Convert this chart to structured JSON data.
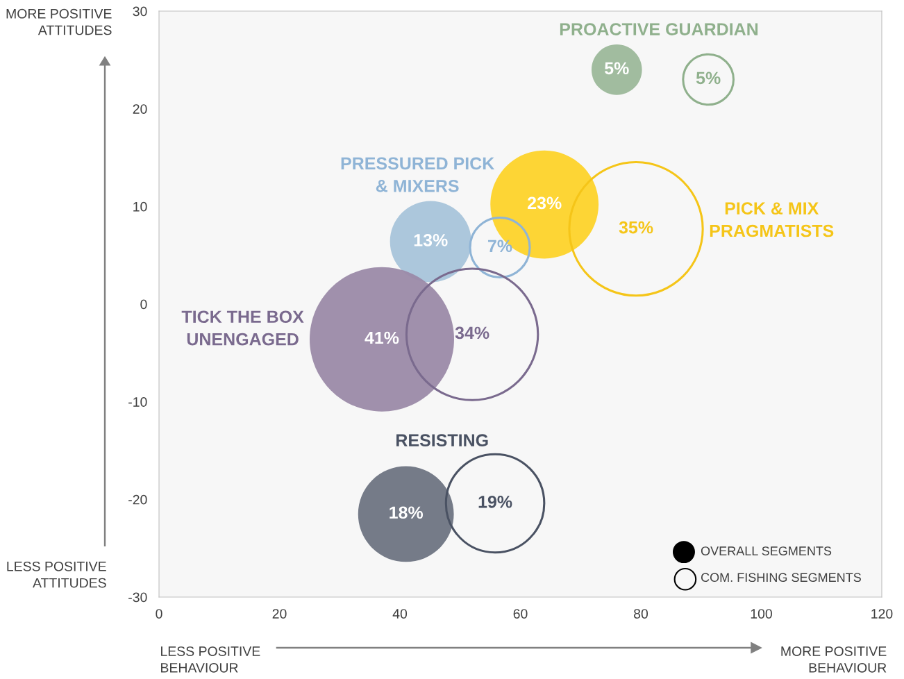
{
  "chart_data": {
    "type": "bubble",
    "xlim": [
      0,
      120
    ],
    "xticks": [
      0,
      20,
      40,
      60,
      80,
      100,
      120
    ],
    "ylim": [
      -30,
      30
    ],
    "yticks": [
      -30,
      -20,
      -10,
      0,
      10,
      20,
      30
    ],
    "grid": false,
    "series": [
      {
        "x": [
          76,
          45.1,
          64.0,
          37.0,
          41.0
        ],
        "values": [
          24.0,
          6.4,
          10.2,
          -3.6,
          -21.5
        ],
        "sizes": [
          0.122,
          0.317,
          0.561,
          1,
          0.439
        ],
        "colors": [
          "#9cb89a",
          "#a8c4da",
          "#fdd32a",
          "#9b8aa8",
          "#6e7482"
        ]
      },
      {
        "line_style": "solid",
        "x": [
          91.2,
          56.6,
          79.2,
          52.0,
          55.8
        ],
        "values": [
          23.0,
          5.8,
          7.7,
          -3.1,
          -20.4
        ],
        "sizes": [
          0.122,
          0.171,
          0.854,
          0.829,
          0.463
        ],
        "colors": [
          "#8fb08c",
          "#8fb4d6",
          "#f5c518",
          "#7a6a8e",
          "#4a5263"
        ]
      }
    ],
    "annotations": [
      "PROACTIVE GUARDIAN",
      "PRESSURED PICK\n& MIXERS",
      "PICK & MIX\nPRAGMATISTS",
      "TICK THE BOX\nUNENGAGED",
      "RESISTING",
      "MORE POSITIVE\nATTITUDES",
      "LESS POSITIVE\nATTITUDES",
      "LESS POSITIVE\nBEHAVIOUR",
      "MORE POSITIVE\nBEHAVIOUR",
      "OVERALL SEGMENTS",
      "COM. FISHING SEGMENTS",
      {
        "text": "5%",
        "x": 76,
        "y": 24.0
      },
      {
        "text": "13%",
        "x": 45.1,
        "y": 6.4
      },
      {
        "text": "23%",
        "x": 64.0,
        "y": 10.2
      },
      {
        "text": "41%",
        "x": 37.0,
        "y": -3.6
      },
      {
        "text": "18%",
        "x": 41.0,
        "y": -21.5
      },
      {
        "text": "5%",
        "x": 91.2,
        "y": 23.0
      },
      {
        "text": "7%",
        "x": 56.6,
        "y": 5.8
      },
      {
        "text": "35%",
        "x": 79.2,
        "y": 7.7
      },
      {
        "text": "34%",
        "x": 52.0,
        "y": -3.1
      },
      {
        "text": "19%",
        "x": 55.8,
        "y": -20.4
      }
    ]
  }
}
